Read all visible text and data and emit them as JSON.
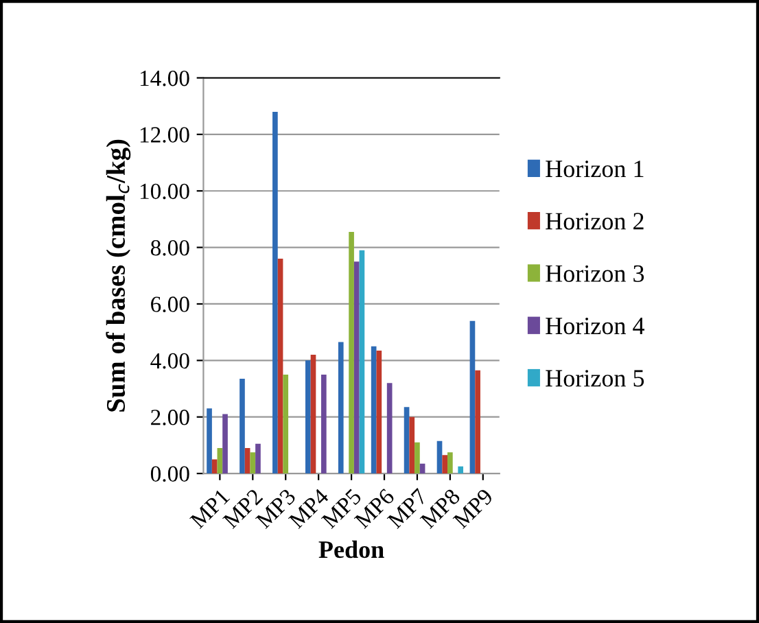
{
  "chart_data": {
    "type": "bar",
    "xlabel": "Pedon",
    "ylabel": "Sum of bases (cmol$_{c}$/kg)",
    "categories": [
      "MP1",
      "MP2",
      "MP3",
      "MP4",
      "MP5",
      "MP6",
      "MP7",
      "MP8",
      "MP9"
    ],
    "series": [
      {
        "name": "Horizon 1",
        "color": "#2e6bb5",
        "values": [
          2.3,
          3.35,
          12.8,
          4.0,
          4.65,
          4.5,
          2.35,
          1.15,
          5.4
        ]
      },
      {
        "name": "Horizon 2",
        "color": "#c0392b",
        "values": [
          0.5,
          0.9,
          7.6,
          4.2,
          null,
          4.35,
          2.0,
          0.65,
          3.65
        ]
      },
      {
        "name": "Horizon 3",
        "color": "#8db33a",
        "values": [
          0.9,
          0.75,
          3.5,
          null,
          8.55,
          null,
          1.1,
          0.75,
          null
        ]
      },
      {
        "name": "Horizon 4",
        "color": "#6b4a9a",
        "values": [
          2.1,
          1.05,
          null,
          3.5,
          7.5,
          3.2,
          0.35,
          null,
          null
        ]
      },
      {
        "name": "Horizon 5",
        "color": "#31a9c8",
        "values": [
          null,
          null,
          null,
          null,
          7.9,
          null,
          null,
          0.25,
          null
        ]
      }
    ],
    "ylim": [
      0,
      14
    ],
    "yticks": [
      {
        "value": 0,
        "label": "0.00"
      },
      {
        "value": 2,
        "label": "2.00"
      },
      {
        "value": 4,
        "label": "4.00"
      },
      {
        "value": 6,
        "label": "6.00"
      },
      {
        "value": 8,
        "label": "8.00"
      },
      {
        "value": 10,
        "label": "10.00"
      },
      {
        "value": 12,
        "label": "12.00"
      },
      {
        "value": 14,
        "label": "14.00"
      }
    ],
    "grid": "y",
    "legend": "right"
  }
}
